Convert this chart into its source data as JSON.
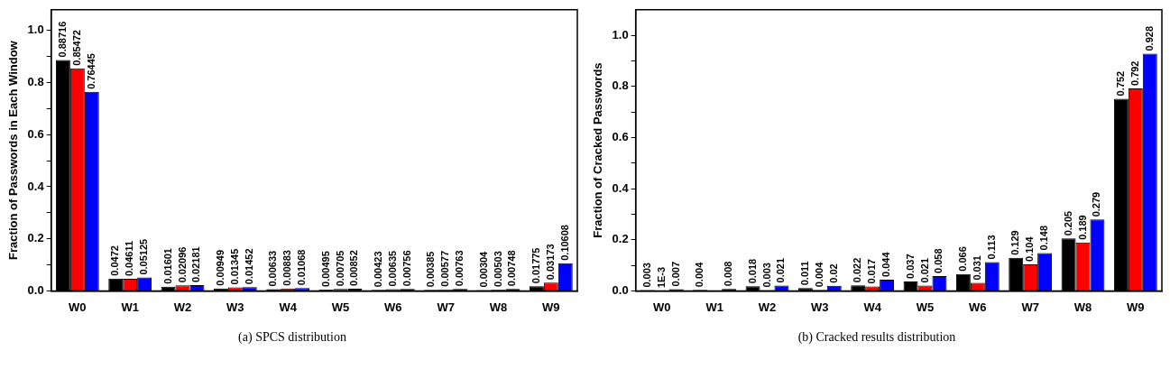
{
  "chart_data": [
    {
      "type": "bar",
      "ylabel": "Fraction of Passwords in Each Window",
      "categories": [
        "W0",
        "W1",
        "W2",
        "W3",
        "W4",
        "W5",
        "W6",
        "W7",
        "W8",
        "W9"
      ],
      "series": [
        {
          "color": "#000000",
          "values": [
            0.88716,
            0.0472,
            0.01601,
            0.00949,
            0.00633,
            0.00495,
            0.00423,
            0.00385,
            0.00304,
            0.01775
          ]
        },
        {
          "color": "#ff0000",
          "values": [
            0.85472,
            0.04611,
            0.02096,
            0.01345,
            0.00883,
            0.00705,
            0.00635,
            0.00577,
            0.00503,
            0.03173
          ]
        },
        {
          "color": "#0000ff",
          "values": [
            0.76445,
            0.05125,
            0.02181,
            0.01452,
            0.01068,
            0.00852,
            0.00756,
            0.00763,
            0.00748,
            0.10608
          ]
        }
      ],
      "data_labels": true,
      "ylim": [
        0,
        1.08
      ],
      "yticks": [
        {
          "value": 0,
          "label": "0.0"
        },
        {
          "value": 0.1,
          "label": null
        },
        {
          "value": 0.2,
          "label": "0.2"
        },
        {
          "value": 0.3,
          "label": null
        },
        {
          "value": 0.4,
          "label": "0.4"
        },
        {
          "value": 0.5,
          "label": null
        },
        {
          "value": 0.6,
          "label": "0.6"
        },
        {
          "value": 0.7,
          "label": null
        },
        {
          "value": 0.8,
          "label": "0.8"
        },
        {
          "value": 0.9,
          "label": null
        },
        {
          "value": 1,
          "label": "1.0"
        }
      ],
      "annotations": [
        "(a)  SPCS distribution"
      ]
    },
    {
      "type": "bar",
      "ylabel": "Fraction of Cracked Passwords",
      "categories": [
        "W0",
        "W1",
        "W2",
        "W3",
        "W4",
        "W5",
        "W6",
        "W7",
        "W8",
        "W9"
      ],
      "series": [
        {
          "color": "#000000",
          "values": [
            0.003,
            0.004,
            0.018,
            0.011,
            0.022,
            0.037,
            0.066,
            0.129,
            0.205,
            0.752
          ],
          "value_labels": [
            "0.003",
            "0.004",
            "0.018",
            "0.011",
            "0.022",
            "0.037",
            "0.066",
            "0.129",
            "0.205",
            "0.752"
          ]
        },
        {
          "color": "#ff0000",
          "values": [
            0.001,
            0,
            0.003,
            0.004,
            0.017,
            0.021,
            0.031,
            0.104,
            0.189,
            0.792
          ],
          "value_labels": [
            "1E-3",
            null,
            "0.003",
            "0.004",
            "0.017",
            "0.021",
            "0.031",
            "0.104",
            "0.189",
            "0.792"
          ]
        },
        {
          "color": "#0000ff",
          "values": [
            0.007,
            0.008,
            0.021,
            0.02,
            0.044,
            0.058,
            0.113,
            0.148,
            0.279,
            0.928
          ],
          "value_labels": [
            "0.007",
            "0.008",
            "0.021",
            "0.02",
            "0.044",
            "0.058",
            "0.113",
            "0.148",
            "0.279",
            "0.928"
          ]
        }
      ],
      "ylim": [
        0,
        1.1
      ],
      "yticks": [
        {
          "value": 0,
          "label": "0.0"
        },
        {
          "value": 0.1,
          "label": null
        },
        {
          "value": 0.2,
          "label": "0.2"
        },
        {
          "value": 0.3,
          "label": null
        },
        {
          "value": 0.4,
          "label": "0.4"
        },
        {
          "value": 0.5,
          "label": null
        },
        {
          "value": 0.6,
          "label": "0.6"
        },
        {
          "value": 0.7,
          "label": null
        },
        {
          "value": 0.8,
          "label": "0.8"
        },
        {
          "value": 0.9,
          "label": null
        },
        {
          "value": 1,
          "label": "1.0"
        }
      ],
      "annotations": [
        "(b)  Cracked results distribution"
      ]
    }
  ]
}
